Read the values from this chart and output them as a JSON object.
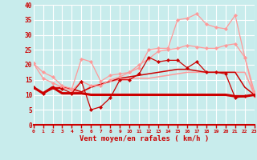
{
  "xlabel": "Vent moyen/en rafales ( km/h )",
  "background_color": "#c8ecec",
  "grid_color": "#ffffff",
  "x_ticks": [
    0,
    1,
    2,
    3,
    4,
    5,
    6,
    7,
    8,
    9,
    10,
    11,
    12,
    13,
    14,
    15,
    16,
    17,
    18,
    19,
    20,
    21,
    22,
    23
  ],
  "ylim": [
    0,
    40
  ],
  "xlim": [
    0,
    23
  ],
  "yticks": [
    0,
    5,
    10,
    15,
    20,
    25,
    30,
    35,
    40
  ],
  "line1_flat": {
    "x": [
      0,
      1,
      2,
      3,
      4,
      5,
      6,
      7,
      8,
      9,
      10,
      11,
      12,
      13,
      14,
      15,
      16,
      17,
      18,
      19,
      20,
      21,
      22,
      23
    ],
    "y": [
      12.5,
      10.5,
      12.5,
      10.5,
      10.5,
      10.5,
      10.0,
      10.0,
      10.0,
      10.0,
      10.0,
      10.0,
      10.0,
      10.0,
      10.0,
      10.0,
      10.0,
      10.0,
      10.0,
      10.0,
      10.0,
      9.5,
      9.5,
      10.0
    ],
    "color": "#cc0000",
    "lw": 2.2,
    "marker": null,
    "zorder": 5
  },
  "line2_marked_dark": {
    "x": [
      0,
      1,
      2,
      3,
      4,
      5,
      6,
      7,
      8,
      9,
      10,
      11,
      12,
      13,
      14,
      15,
      16,
      17,
      18,
      19,
      20,
      21,
      22,
      23
    ],
    "y": [
      12.5,
      10.5,
      12.5,
      12.0,
      10.5,
      14.5,
      5.0,
      6.0,
      9.0,
      15.0,
      15.0,
      17.0,
      22.5,
      21.0,
      21.5,
      21.5,
      19.0,
      21.0,
      17.5,
      17.5,
      17.0,
      9.0,
      9.5,
      10.0
    ],
    "color": "#cc0000",
    "lw": 0.9,
    "marker": "D",
    "ms": 2.0,
    "zorder": 4
  },
  "line3_marked_light_high": {
    "x": [
      0,
      1,
      2,
      3,
      4,
      5,
      6,
      7,
      8,
      9,
      10,
      11,
      12,
      13,
      14,
      15,
      16,
      17,
      18,
      19,
      20,
      21,
      22,
      23
    ],
    "y": [
      20.5,
      17.5,
      16.0,
      13.0,
      12.0,
      22.0,
      21.0,
      14.5,
      16.5,
      17.0,
      17.5,
      19.0,
      25.0,
      25.5,
      25.5,
      35.0,
      35.5,
      37.0,
      33.5,
      32.5,
      32.0,
      36.5,
      22.5,
      9.5
    ],
    "color": "#ff9999",
    "lw": 0.9,
    "marker": "D",
    "ms": 2.0,
    "zorder": 3
  },
  "line4_marked_light_mid": {
    "x": [
      0,
      1,
      2,
      3,
      4,
      5,
      6,
      7,
      8,
      9,
      10,
      11,
      12,
      13,
      14,
      15,
      16,
      17,
      18,
      19,
      20,
      21,
      22,
      23
    ],
    "y": [
      20.5,
      15.5,
      14.0,
      12.5,
      11.5,
      14.5,
      13.0,
      13.0,
      15.0,
      16.0,
      17.5,
      20.0,
      22.0,
      24.5,
      25.0,
      25.5,
      26.5,
      26.0,
      25.5,
      25.5,
      26.5,
      27.0,
      22.5,
      11.0
    ],
    "color": "#ff9999",
    "lw": 0.9,
    "marker": "D",
    "ms": 2.0,
    "zorder": 3
  },
  "line5_smooth_light": {
    "x": [
      0,
      1,
      2,
      3,
      4,
      5,
      6,
      7,
      8,
      9,
      10,
      11,
      12,
      13,
      14,
      15,
      16,
      17,
      18,
      19,
      20,
      21,
      22,
      23
    ],
    "y": [
      12.5,
      10.5,
      12.5,
      12.5,
      11.5,
      10.5,
      13.0,
      13.5,
      14.5,
      15.0,
      15.5,
      15.5,
      15.5,
      16.0,
      16.5,
      17.0,
      17.5,
      17.5,
      17.5,
      17.5,
      17.5,
      17.5,
      17.5,
      10.0
    ],
    "color": "#ff9999",
    "lw": 1.1,
    "marker": null,
    "zorder": 2
  },
  "line6_smooth_dark": {
    "x": [
      0,
      1,
      2,
      3,
      4,
      5,
      6,
      7,
      8,
      9,
      10,
      11,
      12,
      13,
      14,
      15,
      16,
      17,
      18,
      19,
      20,
      21,
      22,
      23
    ],
    "y": [
      12.5,
      10.5,
      12.0,
      12.5,
      12.0,
      11.0,
      12.5,
      13.5,
      14.5,
      15.5,
      16.0,
      16.5,
      17.0,
      17.5,
      18.0,
      18.5,
      18.5,
      18.0,
      17.5,
      17.5,
      17.5,
      17.5,
      12.5,
      10.0
    ],
    "color": "#cc0000",
    "lw": 1.1,
    "marker": null,
    "zorder": 2
  }
}
